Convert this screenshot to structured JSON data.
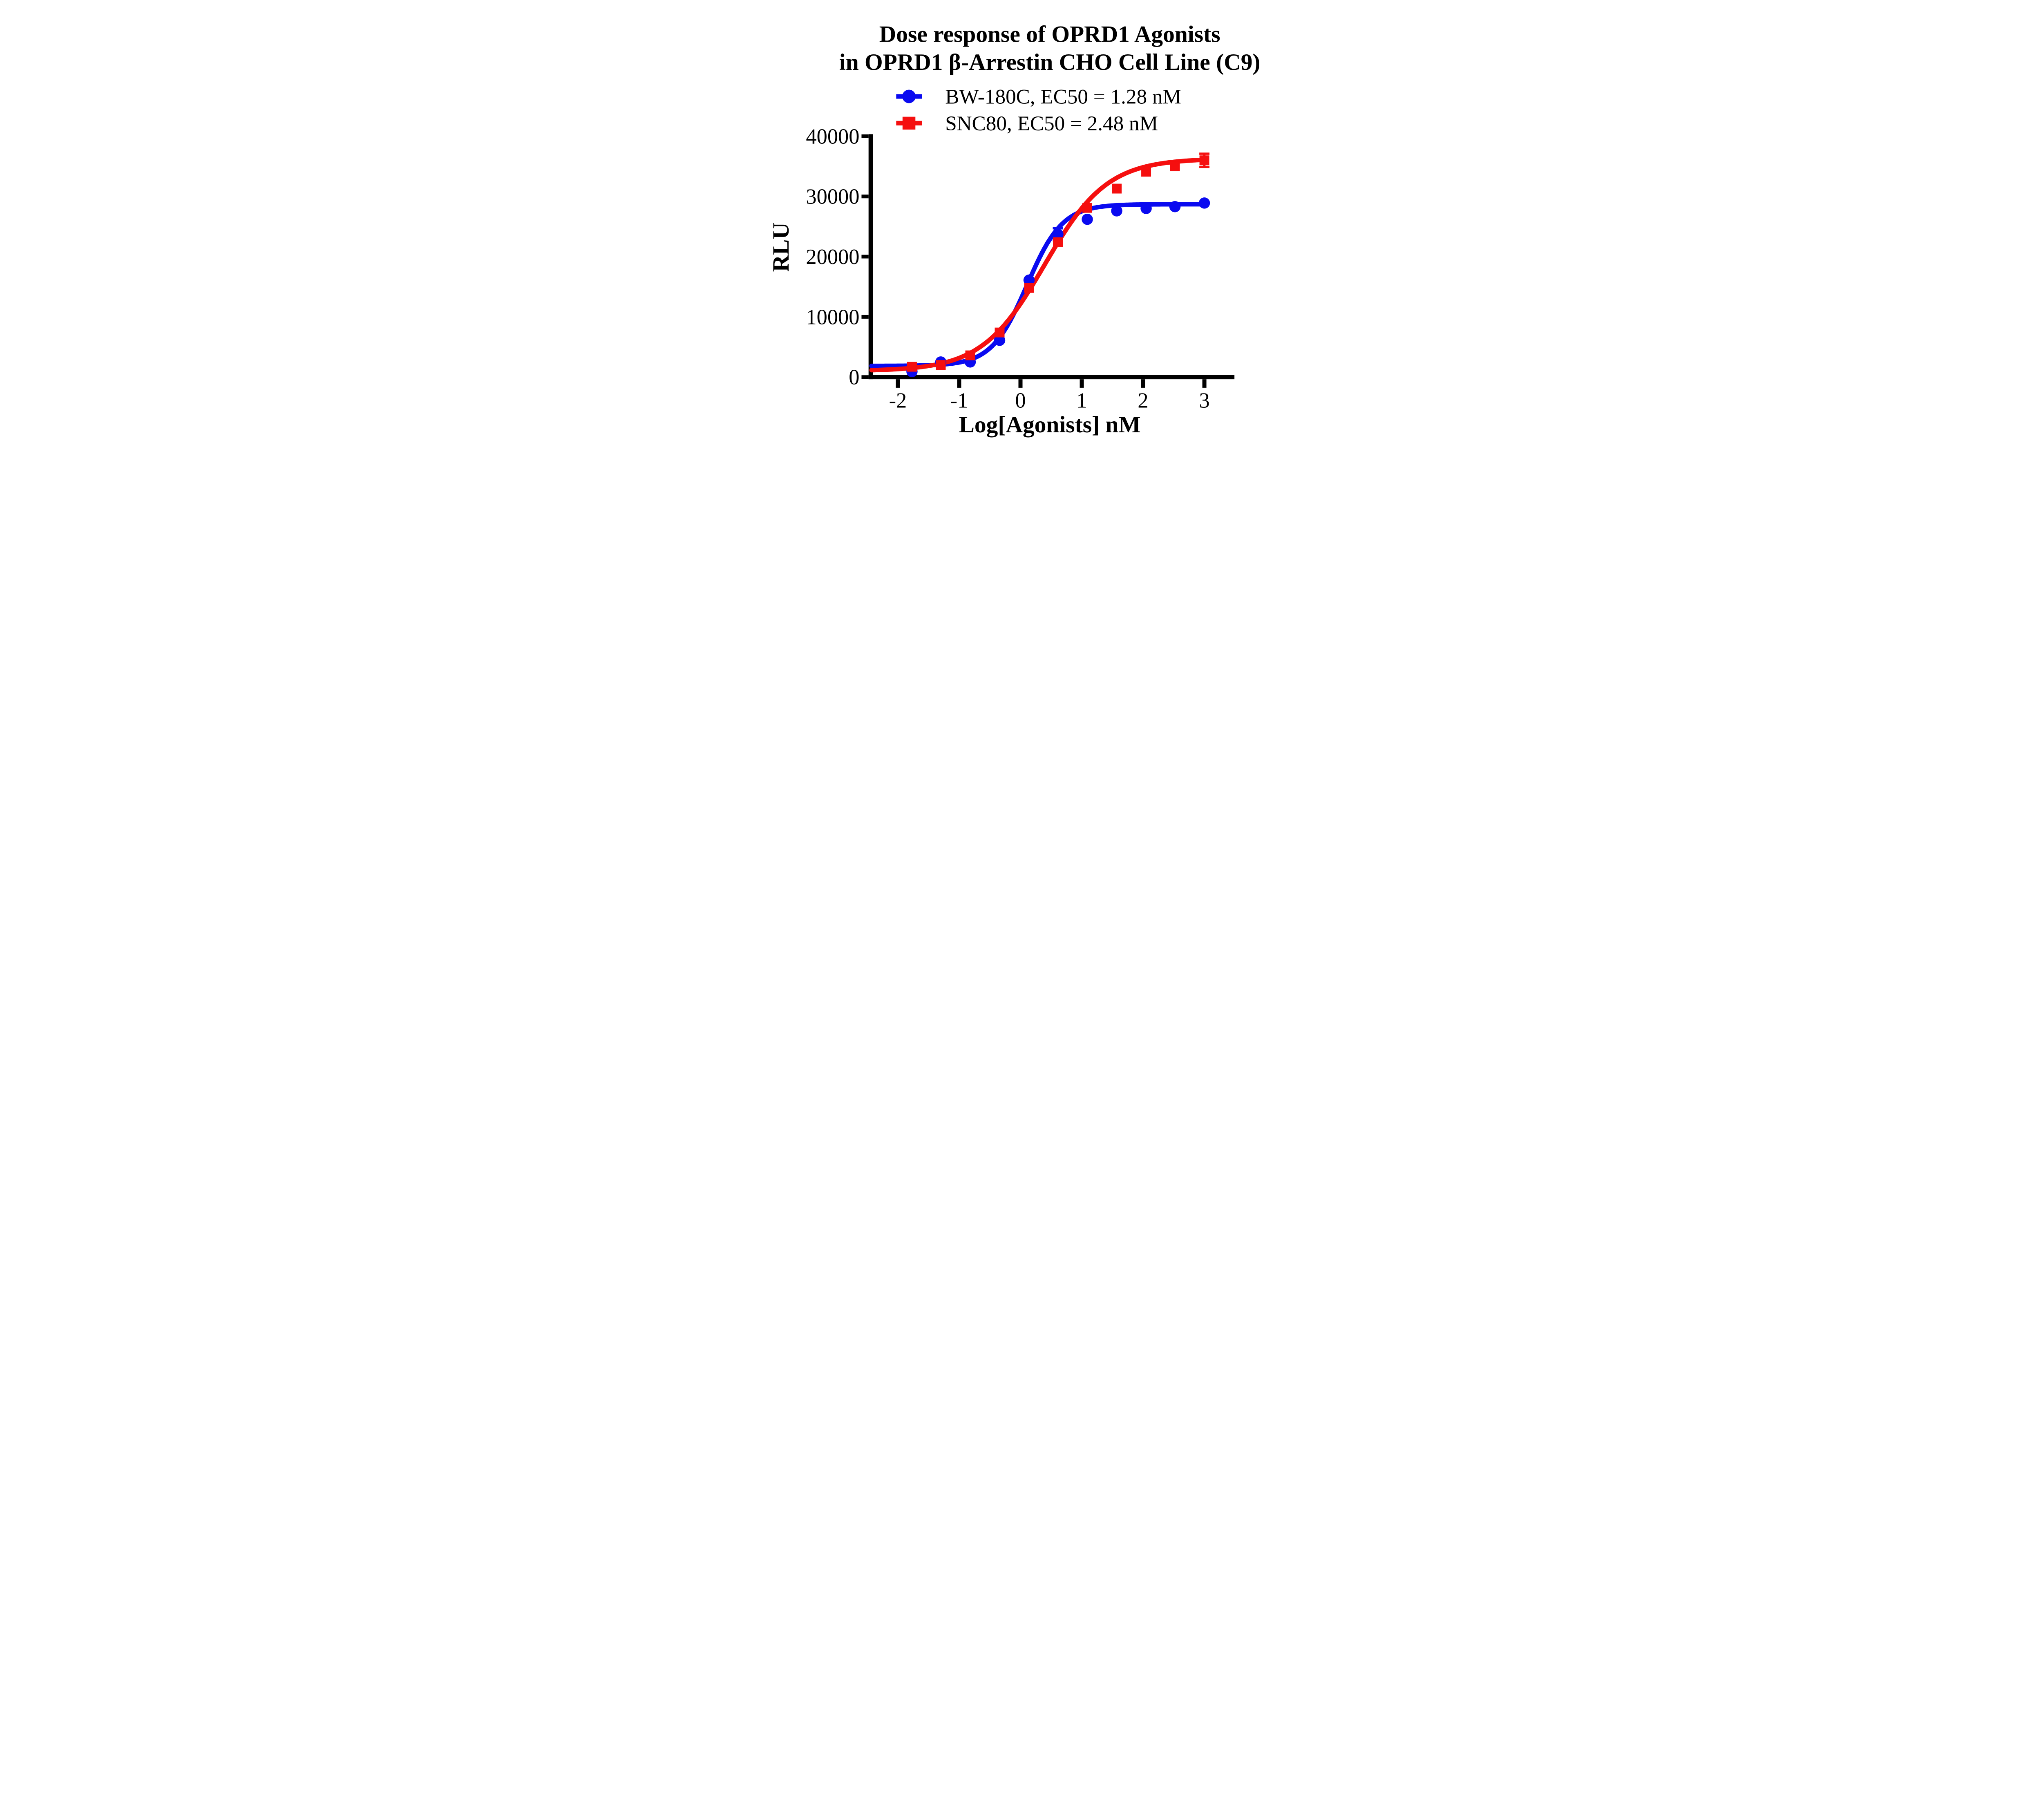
{
  "title": {
    "line1": "Dose response of OPRD1 Agonists",
    "line2": "in OPRD1 β-Arrestin CHO Cell Line (C9)"
  },
  "legend": {
    "items": [
      {
        "label": "BW-180C, EC50 = 1.28 nM",
        "marker": "circle",
        "color": "#0a0af0"
      },
      {
        "label": "SNC80, EC50 = 2.48 nM",
        "marker": "square",
        "color": "#f50f0f"
      }
    ]
  },
  "axes": {
    "x": {
      "label": "Log[Agonists] nM",
      "ticks": [
        "-2",
        "-1",
        "0",
        "1",
        "2",
        "3"
      ],
      "tick_values": [
        -2,
        -1,
        0,
        1,
        2,
        3
      ],
      "range": [
        -2.43,
        3.49
      ]
    },
    "y": {
      "label": "RLU",
      "ticks": [
        "0",
        "10000",
        "20000",
        "30000",
        "40000"
      ],
      "tick_values": [
        0,
        10000,
        20000,
        30000,
        40000
      ],
      "range": [
        0,
        40000
      ]
    }
  },
  "chart_data": {
    "type": "line",
    "title": "Dose response of OPRD1 Agonists in OPRD1 β-Arrestin CHO Cell Line (C9)",
    "xlabel": "Log[Agonists] nM",
    "ylabel": "RLU",
    "xlim": [
      -2.43,
      3.49
    ],
    "ylim": [
      0,
      40000
    ],
    "grid": false,
    "legend_position": "top",
    "x": [
      -1.77,
      -1.3,
      -0.82,
      -0.34,
      0.14,
      0.61,
      1.09,
      1.57,
      2.05,
      2.52,
      3.0
    ],
    "series": [
      {
        "name": "BW-180C",
        "legend_label": "BW-180C, EC50 = 1.28 nM",
        "ec50_nM": 1.28,
        "color": "#0a0af0",
        "marker": "circle",
        "values": [
          900,
          2500,
          2500,
          6100,
          16100,
          23700,
          26200,
          27600,
          28000,
          28300,
          28900
        ],
        "fit": {
          "bottom": 1850,
          "top": 28700,
          "log_ec50": 0.107,
          "hill": 1.5
        },
        "error_bars": [
          {
            "x": 0.61,
            "low": 22700,
            "high": 24700
          }
        ]
      },
      {
        "name": "SNC80",
        "legend_label": "SNC80, EC50 = 2.48 nM",
        "ec50_nM": 2.48,
        "color": "#f50f0f",
        "marker": "square",
        "values": [
          1700,
          2000,
          3600,
          7400,
          14800,
          22400,
          28100,
          31300,
          34100,
          35000,
          36000
        ],
        "fit": {
          "bottom": 1000,
          "top": 36300,
          "log_ec50": 0.394,
          "hill": 0.85
        },
        "error_bars": [
          {
            "x": 3.0,
            "low": 34900,
            "high": 37100
          }
        ]
      }
    ]
  }
}
